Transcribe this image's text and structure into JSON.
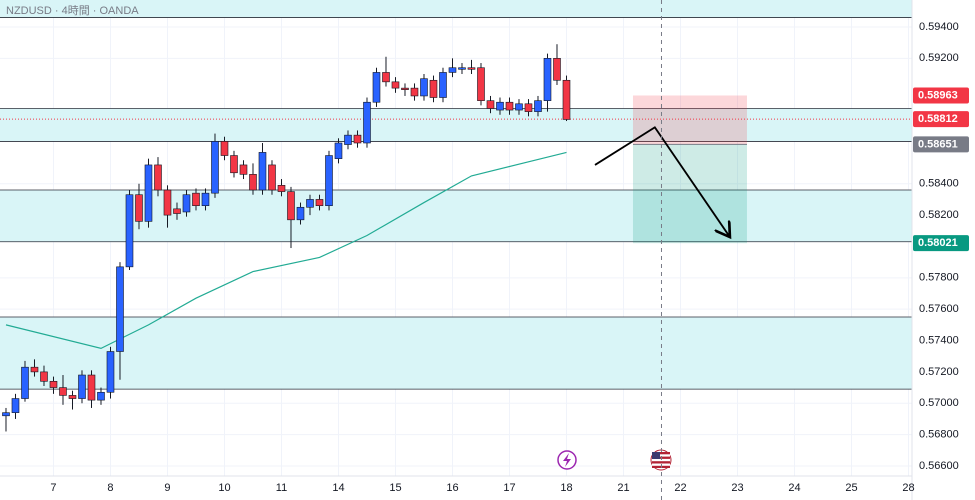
{
  "chart_data": {
    "type": "candlestick",
    "title": "NZDUSD · 4時間 · OANDA",
    "xlim": [
      -0.63,
      95.37
    ],
    "ylim": [
      0.56536,
      0.59572
    ],
    "xticks": [
      {
        "value": 5,
        "label": "7"
      },
      {
        "value": 11,
        "label": "8"
      },
      {
        "value": 17,
        "label": "9"
      },
      {
        "value": 23,
        "label": "10"
      },
      {
        "value": 29,
        "label": "11"
      },
      {
        "value": 35,
        "label": "14"
      },
      {
        "value": 41,
        "label": "15"
      },
      {
        "value": 47,
        "label": "16"
      },
      {
        "value": 53,
        "label": "17"
      },
      {
        "value": 59,
        "label": "18"
      },
      {
        "value": 65,
        "label": "21"
      },
      {
        "value": 71,
        "label": "22"
      },
      {
        "value": 77,
        "label": "23"
      },
      {
        "value": 83,
        "label": "24"
      },
      {
        "value": 89,
        "label": "25"
      },
      {
        "value": 95,
        "label": "28"
      }
    ],
    "yticks": [
      {
        "value": 0.594,
        "label": "0.59400"
      },
      {
        "value": 0.592,
        "label": "0.59200"
      },
      {
        "value": 0.584,
        "label": "0.58400"
      },
      {
        "value": 0.582,
        "label": "0.58200"
      },
      {
        "value": 0.578,
        "label": "0.57800"
      },
      {
        "value": 0.576,
        "label": "0.57600"
      },
      {
        "value": 0.574,
        "label": "0.57400"
      },
      {
        "value": 0.572,
        "label": "0.57200"
      },
      {
        "value": 0.57,
        "label": "0.57000"
      },
      {
        "value": 0.568,
        "label": "0.56800"
      },
      {
        "value": 0.566,
        "label": "0.56600"
      }
    ],
    "grid": true,
    "up_color": "#2962ff",
    "down_color": "#f23645",
    "candles": {
      "open": [
        0.5692,
        0.5694,
        0.5703,
        0.5723,
        0.572,
        0.5714,
        0.571,
        0.5705,
        0.5703,
        0.5718,
        0.5702,
        0.5707,
        0.5733,
        0.5787,
        0.5833,
        0.5816,
        0.5852,
        0.5836,
        0.5824,
        0.5822,
        0.5834,
        0.5826,
        0.5834,
        0.5867,
        0.5858,
        0.5852,
        0.5846,
        0.5836,
        0.5852,
        0.5839,
        0.5835,
        0.5817,
        0.5825,
        0.583,
        0.5826,
        0.5856,
        0.5865,
        0.5871,
        0.5866,
        0.5892,
        0.5911,
        0.5905,
        0.5901,
        0.5901,
        0.5896,
        0.5906,
        0.5895,
        0.5911,
        0.5913,
        0.5914,
        0.5914,
        0.5893,
        0.5887,
        0.5892,
        0.5887,
        0.5891,
        0.5886,
        0.5893,
        0.592,
        0.5906
      ],
      "high": [
        0.5697,
        0.5706,
        0.5727,
        0.5728,
        0.5724,
        0.5717,
        0.5718,
        0.5708,
        0.5721,
        0.5721,
        0.571,
        0.5736,
        0.579,
        0.5836,
        0.584,
        0.5856,
        0.5857,
        0.5839,
        0.5828,
        0.5836,
        0.5837,
        0.5837,
        0.5872,
        0.587,
        0.5861,
        0.5855,
        0.5853,
        0.5866,
        0.5855,
        0.5843,
        0.5838,
        0.5828,
        0.5833,
        0.5833,
        0.5861,
        0.5869,
        0.5874,
        0.5874,
        0.5895,
        0.5914,
        0.5921,
        0.5908,
        0.5904,
        0.5904,
        0.591,
        0.5909,
        0.5914,
        0.592,
        0.5917,
        0.5919,
        0.5917,
        0.5896,
        0.5895,
        0.5895,
        0.5894,
        0.5894,
        0.5896,
        0.5923,
        0.5929,
        0.5909
      ],
      "low": [
        0.5682,
        0.569,
        0.5701,
        0.5717,
        0.5711,
        0.5706,
        0.5699,
        0.5696,
        0.57,
        0.5697,
        0.5699,
        0.5703,
        0.5715,
        0.5785,
        0.5811,
        0.5812,
        0.5832,
        0.5812,
        0.5817,
        0.5819,
        0.5823,
        0.5823,
        0.5831,
        0.5855,
        0.5844,
        0.5843,
        0.5833,
        0.5833,
        0.5833,
        0.5832,
        0.5799,
        0.5814,
        0.582,
        0.5823,
        0.5823,
        0.5853,
        0.5862,
        0.5863,
        0.5863,
        0.5889,
        0.5902,
        0.5898,
        0.5896,
        0.5893,
        0.5893,
        0.5892,
        0.5892,
        0.5908,
        0.591,
        0.591,
        0.589,
        0.5885,
        0.5884,
        0.5884,
        0.5884,
        0.5883,
        0.5883,
        0.5886,
        0.5903,
        0.588
      ],
      "close": [
        0.5694,
        0.5703,
        0.5723,
        0.572,
        0.5714,
        0.571,
        0.5705,
        0.5703,
        0.5718,
        0.5702,
        0.5707,
        0.5733,
        0.5787,
        0.5833,
        0.5816,
        0.5852,
        0.5836,
        0.582,
        0.5821,
        0.5833,
        0.5826,
        0.5834,
        0.5867,
        0.5858,
        0.5847,
        0.5846,
        0.5836,
        0.586,
        0.5836,
        0.5835,
        0.5817,
        0.5825,
        0.583,
        0.5826,
        0.5858,
        0.5866,
        0.5871,
        0.5866,
        0.5892,
        0.5911,
        0.5905,
        0.5901,
        0.59,
        0.5896,
        0.5907,
        0.5895,
        0.5911,
        0.5914,
        0.5914,
        0.5913,
        0.5893,
        0.5888,
        0.5892,
        0.5887,
        0.5891,
        0.5886,
        0.5893,
        0.592,
        0.5906,
        0.5881
      ]
    },
    "ma": {
      "color": "#22ab94",
      "x": [
        0,
        10,
        15,
        20,
        26,
        33,
        38,
        44,
        49,
        55,
        59
      ],
      "values": [
        0.575,
        0.5735,
        0.575,
        0.5767,
        0.5784,
        0.5793,
        0.5807,
        0.5828,
        0.5845,
        0.5854,
        0.586
      ]
    },
    "zones": [
      [
        0.5946,
        0.5958
      ],
      [
        0.5867,
        0.5888
      ],
      [
        0.5803,
        0.5836
      ],
      [
        0.5709,
        0.5755
      ]
    ],
    "zone_color": "#d9f5f7",
    "position": {
      "x": [
        66,
        78
      ],
      "stop": 0.58963,
      "entry": 0.58651,
      "target": 0.58021
    },
    "arrow": {
      "x": [
        62,
        68.3,
        76.2
      ],
      "y": [
        0.5852,
        0.5876,
        0.5806
      ]
    },
    "marker_x": 69,
    "current_price": 0.58812,
    "price_labels": [
      {
        "value": 0.58963,
        "color": "#f23645"
      },
      {
        "value": 0.58812,
        "color": "#f23645"
      },
      {
        "value": 0.58651,
        "color": "#787b86"
      },
      {
        "value": 0.58021,
        "color": "#089981"
      }
    ]
  }
}
